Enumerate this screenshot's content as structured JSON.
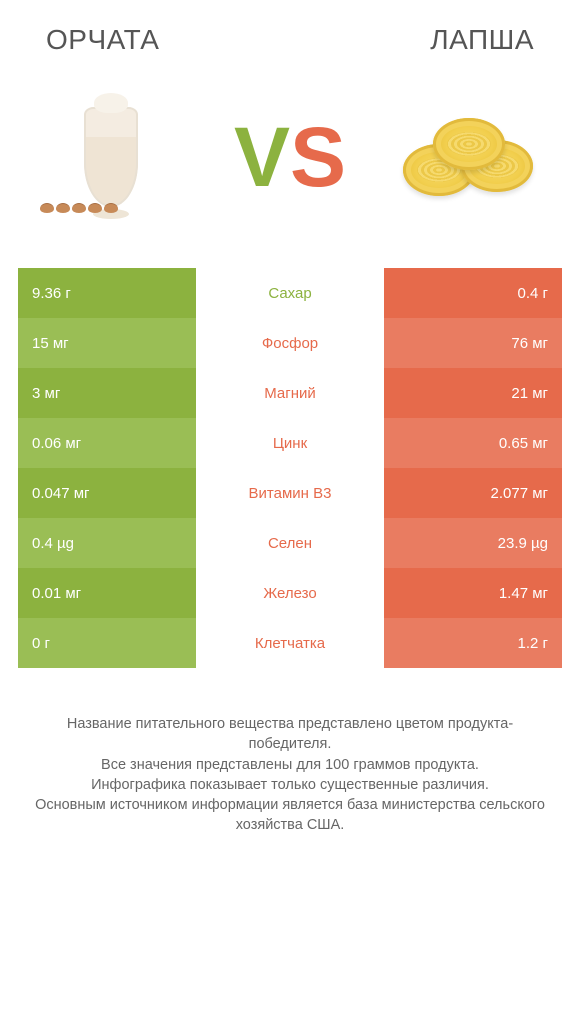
{
  "colors": {
    "left": "#8cb23f",
    "left_alt": "#9abe55",
    "right": "#e66a4b",
    "right_alt": "#e97c61",
    "mid_label_left": "#8cb23f",
    "mid_label_right": "#e66a4b",
    "heading": "#555555",
    "foot": "#666666"
  },
  "titles": {
    "left": "ОРЧАТА",
    "right": "ЛАПША"
  },
  "vs": {
    "v": "V",
    "s": "S"
  },
  "rows": [
    {
      "label": "Сахар",
      "left": "9.36 г",
      "right": "0.4 г",
      "winner": "left"
    },
    {
      "label": "Фосфор",
      "left": "15 мг",
      "right": "76 мг",
      "winner": "right"
    },
    {
      "label": "Магний",
      "left": "3 мг",
      "right": "21 мг",
      "winner": "right"
    },
    {
      "label": "Цинк",
      "left": "0.06 мг",
      "right": "0.65 мг",
      "winner": "right"
    },
    {
      "label": "Витамин B3",
      "left": "0.047 мг",
      "right": "2.077 мг",
      "winner": "right"
    },
    {
      "label": "Селен",
      "left": "0.4 µg",
      "right": "23.9 µg",
      "winner": "right"
    },
    {
      "label": "Железо",
      "left": "0.01 мг",
      "right": "1.47 мг",
      "winner": "right"
    },
    {
      "label": "Клетчатка",
      "left": "0 г",
      "right": "1.2 г",
      "winner": "right"
    }
  ],
  "footnote": "Название питательного вещества представлено цветом продукта-победителя.\nВсе значения представлены для 100 граммов продукта.\nИнфографика показывает только существенные различия.\nОсновным источником информации является база министерства сельского хозяйства США."
}
